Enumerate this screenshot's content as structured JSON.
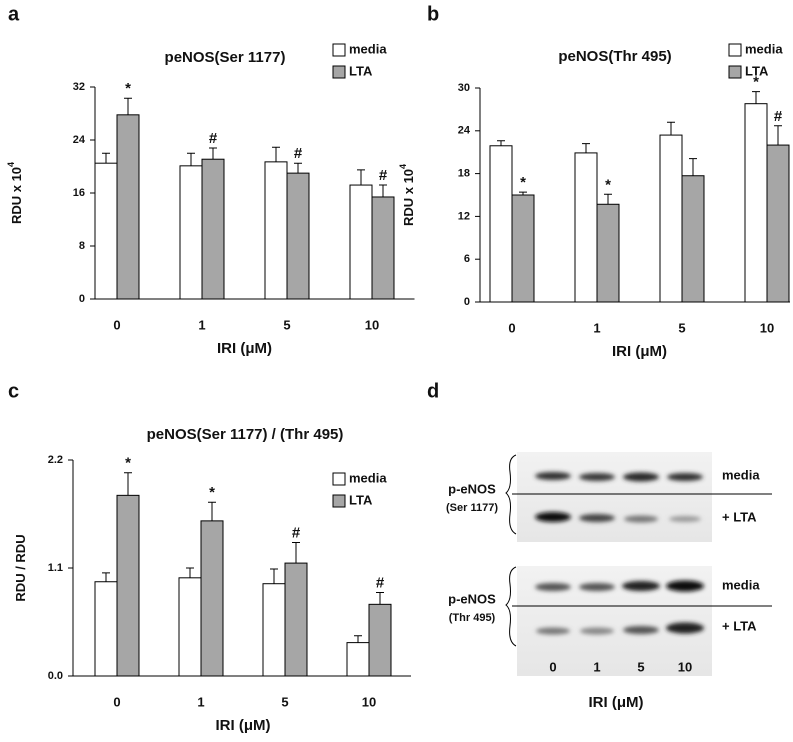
{
  "chart_data": [
    {
      "type": "bar",
      "panel": "a",
      "title": "peNOS(Ser 1177)",
      "xlabel": "IRI (μM)",
      "ylabel": "RDU x 10",
      "ylabel_exponent": "4",
      "categories": [
        "0",
        "1",
        "5",
        "10"
      ],
      "ylim": [
        0,
        32
      ],
      "yticks": [
        0,
        8,
        16,
        24,
        32
      ],
      "series": [
        {
          "name": "media",
          "color": "#ffffff",
          "values": [
            20.5,
            20.1,
            20.7,
            17.2
          ],
          "errors": [
            1.5,
            1.9,
            2.2,
            2.3
          ],
          "markers": [
            null,
            null,
            null,
            null
          ]
        },
        {
          "name": "LTA",
          "color": "#a6a6a6",
          "values": [
            27.8,
            21.1,
            19.0,
            15.4
          ],
          "errors": [
            2.5,
            1.7,
            1.5,
            1.8
          ],
          "markers": [
            "*",
            "#",
            "#",
            "#"
          ]
        }
      ]
    },
    {
      "type": "bar",
      "panel": "b",
      "title": "peNOS(Thr 495)",
      "xlabel": "IRI (μM)",
      "ylabel": "RDU x 10",
      "ylabel_exponent": "4",
      "categories": [
        "0",
        "1",
        "5",
        "10"
      ],
      "ylim": [
        0,
        30
      ],
      "yticks": [
        0,
        6,
        12,
        18,
        24,
        30
      ],
      "series": [
        {
          "name": "media",
          "color": "#ffffff",
          "values": [
            21.9,
            20.9,
            23.4,
            27.8
          ],
          "errors": [
            0.7,
            1.3,
            1.8,
            1.7
          ],
          "markers": [
            null,
            null,
            null,
            "*"
          ]
        },
        {
          "name": "LTA",
          "color": "#a6a6a6",
          "values": [
            15.0,
            13.7,
            17.7,
            22.0
          ],
          "errors": [
            0.4,
            1.4,
            2.4,
            2.7
          ],
          "markers": [
            "*",
            "*",
            null,
            "#"
          ]
        }
      ]
    },
    {
      "type": "bar",
      "panel": "c",
      "title": "peNOS(Ser 1177) / (Thr 495)",
      "xlabel": "IRI (μM)",
      "ylabel": "RDU / RDU",
      "categories": [
        "0",
        "1",
        "5",
        "10"
      ],
      "ylim": [
        0,
        2.2
      ],
      "yticks": [
        {
          "value": 0,
          "label": "0.0"
        },
        1.1,
        2.2
      ],
      "series": [
        {
          "name": "media",
          "color": "#ffffff",
          "values": [
            0.96,
            1.0,
            0.94,
            0.34
          ],
          "errors": [
            0.09,
            0.1,
            0.15,
            0.07
          ],
          "markers": [
            null,
            null,
            null,
            null
          ]
        },
        {
          "name": "LTA",
          "color": "#a6a6a6",
          "values": [
            1.84,
            1.58,
            1.15,
            0.73
          ],
          "errors": [
            0.23,
            0.19,
            0.21,
            0.12
          ],
          "markers": [
            "*",
            "*",
            "#",
            "#"
          ]
        }
      ]
    }
  ],
  "blot": {
    "panel": "d",
    "lanes": [
      "0",
      "1",
      "5",
      "10"
    ],
    "xlabel": "IRI (μM)",
    "groups": [
      {
        "label": "p-eNOS",
        "sublabel": "(Ser 1177)",
        "rows": [
          "media",
          "+ LTA"
        ]
      },
      {
        "label": "p-eNOS",
        "sublabel": "(Thr 495)",
        "rows": [
          "media",
          "+ LTA"
        ]
      }
    ]
  }
}
